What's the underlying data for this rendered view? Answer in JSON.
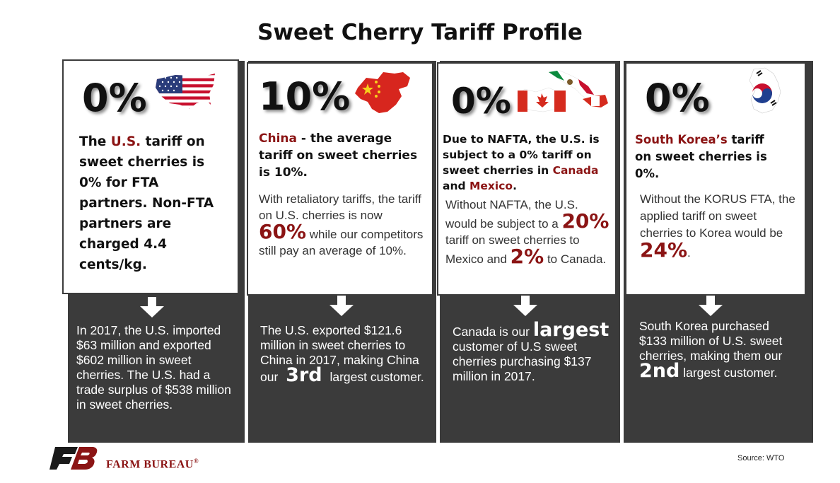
{
  "title": "Sweet Cherry Tariff Profile",
  "colors": {
    "accent_red": "#8b1414",
    "panel_dark": "#3b3b3b"
  },
  "panels": [
    {
      "id": "us",
      "big_number": "0%",
      "flag_icon": "us-map-flag-icon",
      "lead": {
        "pre": "The ",
        "highlight": "U.S.",
        "post": " tariff on sweet cherries is 0% for FTA partners. Non-FTA partners are charged 4.4 cents/kg."
      },
      "bottom": "In 2017, the U.S. imported $63 million and exported $602 million in sweet cherries. The U.S. had a trade surplus of $538 million in sweet cherries."
    },
    {
      "id": "china",
      "big_number": "10%",
      "flag_icon": "china-map-flag-icon",
      "lead": {
        "highlight": "China",
        "post": " - the average tariff on sweet cherries is 10%."
      },
      "sub": {
        "pre": "With retaliatory tariffs, the tariff on U.S. cherries is now ",
        "highlight": "60%",
        "post": " while our competitors still pay an average of 10%."
      },
      "bottom": {
        "pre": "The U.S. exported $121.6 million in sweet cherries to China in 2017, making China our ",
        "highlight": "3rd",
        "post": " largest customer."
      }
    },
    {
      "id": "nafta",
      "big_number": "0%",
      "flag_icon": "canada-mexico-map-flag-icon",
      "lead": {
        "pre": "Due to NAFTA, the U.S. is subject to a 0% tariff on sweet cherries in ",
        "highlight1": "Canada",
        "mid": " and ",
        "highlight2": "Mexico",
        "post": "."
      },
      "sub": {
        "pre": "Without NAFTA, the U.S. would be subject to a ",
        "highlight1": "20%",
        "mid": " tariff on sweet cherries to Mexico and ",
        "highlight2": "2%",
        "post": " to Canada."
      },
      "bottom": {
        "pre": "Canada is our ",
        "highlight": "largest",
        "post": " customer of U.S sweet cherries purchasing $137 million in 2017."
      }
    },
    {
      "id": "korea",
      "big_number": "0%",
      "flag_icon": "south-korea-map-flag-icon",
      "lead": {
        "highlight": "South Korea’s",
        "post": " tariff on sweet cherries is 0%."
      },
      "sub": {
        "pre": "Without the KORUS FTA, the applied tariff on sweet cherries to Korea would be ",
        "highlight": "24%",
        "post": "."
      },
      "bottom": {
        "pre": "South Korea purchased $133 million of U.S. sweet cherries, making them our ",
        "highlight": "2nd",
        "post": " largest customer."
      }
    }
  ],
  "footer": {
    "brand": "FARM BUREAU",
    "registered": "®",
    "logo_icon": "farm-bureau-logo-icon",
    "source": "Source: WTO"
  }
}
